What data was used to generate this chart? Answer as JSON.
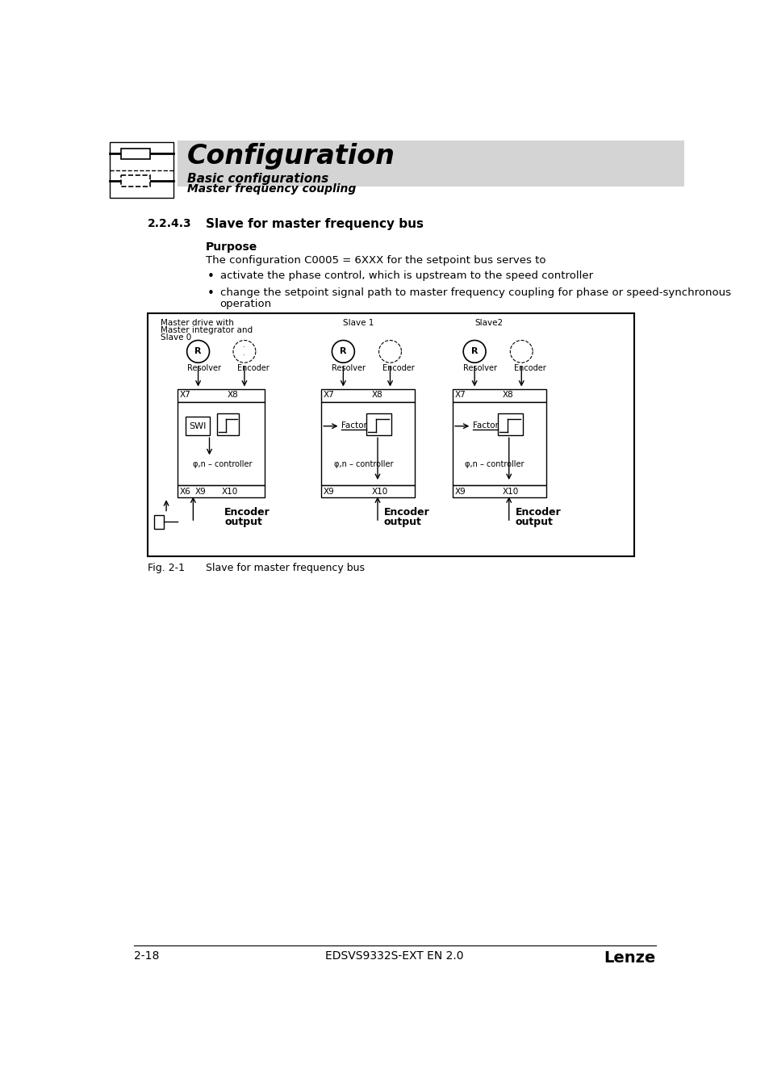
{
  "page_number": "2-18",
  "footer_center": "EDSVS9332S-EXT EN 2.0",
  "footer_right": "Lenze",
  "header_title": "Configuration",
  "header_sub1": "Basic configurations",
  "header_sub2": "Master frequency coupling",
  "section_number": "2.2.4.3",
  "section_title": "Slave for master frequency bus",
  "subsection_title": "Purpose",
  "body_text1": "The configuration C0005 = 6XXX for the setpoint bus serves to",
  "bullet1": "activate the phase control, which is upstream to the speed controller",
  "bullet2a": "change the setpoint signal path to master frequency coupling for phase or speed-synchronous",
  "bullet2b": "operation",
  "fig_label": "Fig. 2-1",
  "fig_text": "Slave for master frequency bus",
  "bg_color": "#ffffff",
  "header_bg": "#d4d4d4",
  "diag_border": "#000000"
}
